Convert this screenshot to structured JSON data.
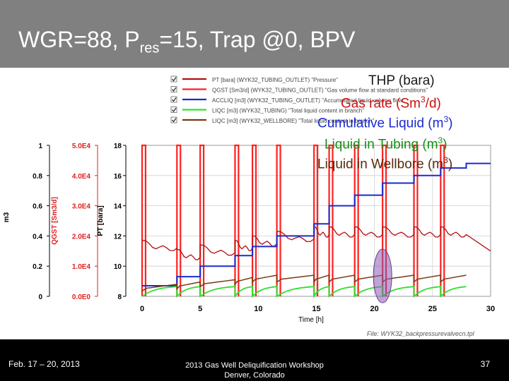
{
  "slide": {
    "title_main": "WGR=88, P",
    "title_sub": "res",
    "title_rest": "=15, Trap @0, BPV",
    "footer_left": "Feb. 17 – 20, 2013",
    "footer_center_1": "2013 Gas Well Deliquification Workshop",
    "footer_center_2": "Denver, Colorado",
    "page_number": "37"
  },
  "annotations": {
    "thp": "THP (bara)",
    "gas_rate": "Gas rate (Sm",
    "gas_rate_sup": "3",
    "gas_rate_tail": "/d)",
    "cum_liquid": "Cumulative Liquid (m",
    "cum_sup": "3",
    "cum_tail": ")",
    "liq_tubing": "Liquid in Tubing (m",
    "tub_sup": "3",
    "tub_tail": ")",
    "liq_wellbore": "Liquid in Wellbore (m",
    "wb_sup": "3",
    "wb_tail": ")"
  },
  "chart_data": {
    "type": "line",
    "xlabel": "Time [h]",
    "xlim": [
      0,
      30
    ],
    "x_ticks": [
      "0",
      "5",
      "10",
      "15",
      "20",
      "25",
      "30"
    ],
    "axes": [
      {
        "label": "m3",
        "ticks": [
          "0",
          "0.2",
          "0.4",
          "0.6",
          "0.8",
          "1"
        ],
        "color": "#000000"
      },
      {
        "label": "QGST [Sm3/d]",
        "ticks": [
          "0.0E0",
          "1.0E4",
          "2.0E4",
          "3.0E4",
          "4.0E4",
          "5.0E4"
        ],
        "color": "#e02020"
      },
      {
        "label": "PT [bara]",
        "ticks": [
          "8",
          "10",
          "12",
          "14",
          "16",
          "18"
        ],
        "color": "#000000"
      }
    ],
    "legend": [
      {
        "text": "PT [bara] (WYK32_TUBING_OUTLET) \"Pressure\"",
        "color": "#b01010"
      },
      {
        "text": "QGST [Sm3/d] (WYK32_TUBING_OUTLET) \"Gas volume flow at standard conditions\"",
        "color": "#ff2020"
      },
      {
        "text": "ACCLIQ [m3] (WYK32_TUBING_OUTLET) \"Accumulated liquid volume flow\"",
        "color": "#1a2bd0"
      },
      {
        "text": "LIQC [m3] (WYK32_TUBING) \"Total liquid content in branch\"",
        "color": "#2ee02e"
      },
      {
        "text": "LIQC [m3] (WYK32_WELLBORE) \"Total liquid content in branch\"",
        "color": "#7a3a10"
      }
    ],
    "legend_position": "top-right",
    "grid": true,
    "colors": {
      "pressure": "#b01010",
      "gas_rate": "#ff2020",
      "cum_liquid": "#1a2bd0",
      "liq_tubing": "#2ee02e",
      "liq_wellbore": "#7a3a10",
      "highlight": "#8c5ab4"
    },
    "valve_open_times_h": [
      0,
      3,
      5,
      8,
      9.5,
      11.6,
      14.8,
      16.1,
      18.3,
      20.7,
      23.4,
      25.7,
      27.9
    ],
    "series": [
      {
        "name": "PT [bara]",
        "axis": "PT [bara]",
        "description_range": [
          10,
          15.5
        ]
      },
      {
        "name": "QGST [Sm3/d]",
        "axis": "QGST [Sm3/d]",
        "peak": 50000
      },
      {
        "name": "ACCLIQ [m3]",
        "axis": "m3",
        "steps_x": [
          0,
          3,
          5,
          8,
          9.5,
          11.6,
          14.8,
          16.1,
          18.3,
          20.7,
          23.4,
          25.7,
          27.9,
          30
        ],
        "steps_y": [
          0.07,
          0.13,
          0.2,
          0.27,
          0.33,
          0.4,
          0.48,
          0.6,
          0.67,
          0.75,
          0.8,
          0.85,
          0.88,
          0.88
        ]
      },
      {
        "name": "LIQC tubing [m3]",
        "axis": "m3",
        "range": [
          0,
          0.07
        ]
      },
      {
        "name": "LIQC wellbore [m3]",
        "axis": "m3",
        "range": [
          0.05,
          0.15
        ]
      }
    ],
    "file_label": "File: WYK32_backpressurevalvecn.tpl"
  }
}
